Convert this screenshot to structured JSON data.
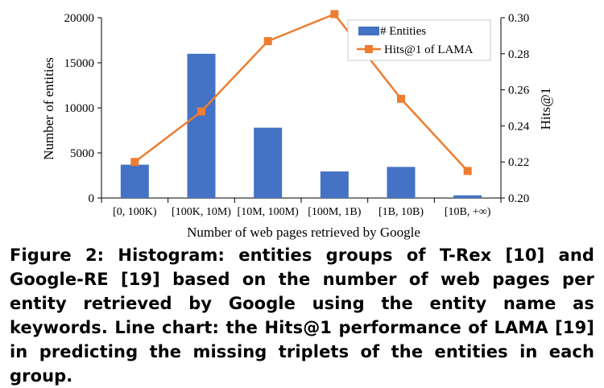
{
  "chart_data": {
    "type": "bar",
    "categories": [
      "[0, 100K)",
      "[100K, 10M)",
      "[10M, 100M)",
      "[100M, 1B)",
      "[1B, 10B)",
      "[10B, +∞)"
    ],
    "series": [
      {
        "name": "# Entities",
        "type": "bar",
        "axis": "left",
        "color": "#4472C4",
        "values": [
          3700,
          16000,
          7800,
          2950,
          3450,
          300
        ]
      },
      {
        "name": "Hits@1 of LAMA",
        "type": "line",
        "axis": "right",
        "color": "#ED7D31",
        "values": [
          0.22,
          0.248,
          0.287,
          0.302,
          0.255,
          0.215
        ]
      }
    ],
    "xlabel": "Number of web pages retrieved by Google",
    "ylabel": "Number of entities",
    "ylabel_right": "Hits@1",
    "ylim": [
      0,
      20000
    ],
    "ylim_right": [
      0.2,
      0.3
    ],
    "yticks": [
      "0",
      "5000",
      "10000",
      "15000",
      "20000"
    ],
    "yticks_right": [
      "0.20",
      "0.22",
      "0.24",
      "0.26",
      "0.28",
      "0.30"
    ],
    "legend_position": "top-right"
  },
  "caption": "Figure 2: Histogram: entities groups of T-Rex [10] and Google-RE [19] based on the number of web pages per entity retrieved by Google using the entity name as keywords. Line chart: the Hits@1 performance of LAMA [19] in predicting the missing triplets of the entities in each group."
}
